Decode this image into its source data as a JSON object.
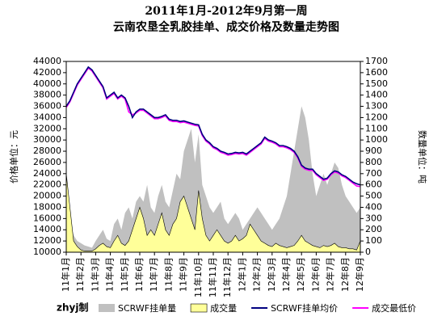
{
  "chart_data": {
    "type": "area-line",
    "title": "2011年1月-2012年9月第一周",
    "subtitle": "云南农垦全乳胶挂单、成交价格及数量走势图",
    "y_label": "价格单位：元",
    "y2_label": "数量单位：吨",
    "credit": "zhyj制",
    "categories": [
      "11年1月",
      null,
      null,
      null,
      "11年2月",
      null,
      null,
      null,
      "11年3月",
      null,
      null,
      null,
      "11年4月",
      null,
      null,
      null,
      "11年5月",
      null,
      null,
      null,
      "11年6月",
      null,
      null,
      null,
      "11年7月",
      null,
      null,
      null,
      "11年8月",
      null,
      null,
      null,
      "11年9月",
      null,
      null,
      null,
      "11年10月",
      null,
      null,
      null,
      "11年11月",
      null,
      null,
      null,
      "11年12月",
      null,
      null,
      null,
      "12年1月",
      null,
      null,
      null,
      "12年2月",
      null,
      null,
      null,
      "12年3月",
      null,
      null,
      null,
      "12年4月",
      null,
      null,
      null,
      "12年5月",
      null,
      null,
      null,
      "12年6月",
      null,
      null,
      null,
      "12年7月",
      null,
      null,
      null,
      "12年8月",
      null,
      null,
      null,
      "12年9月"
    ],
    "ylim": [
      10000,
      44000
    ],
    "yticks": [
      10000,
      12000,
      14000,
      16000,
      18000,
      20000,
      22000,
      24000,
      26000,
      28000,
      30000,
      32000,
      34000,
      36000,
      38000,
      40000,
      42000,
      44000
    ],
    "y2lim": [
      0,
      1700
    ],
    "y2ticks": [
      0,
      100,
      200,
      300,
      400,
      500,
      600,
      700,
      800,
      900,
      1000,
      1100,
      1200,
      1300,
      1400,
      1500,
      1600,
      1700
    ],
    "series": [
      {
        "name": "SCRWF挂单量",
        "color": "#c0c0c0",
        "kind": "area",
        "axis": "y2",
        "values": [
          700,
          300,
          150,
          100,
          80,
          60,
          50,
          40,
          100,
          150,
          200,
          120,
          100,
          250,
          300,
          200,
          350,
          400,
          300,
          450,
          500,
          450,
          600,
          400,
          350,
          500,
          600,
          450,
          400,
          550,
          700,
          650,
          900,
          1000,
          1100,
          800,
          1050,
          600,
          500,
          400,
          350,
          400,
          450,
          300,
          250,
          300,
          350,
          300,
          200,
          250,
          300,
          350,
          400,
          350,
          300,
          250,
          200,
          250,
          300,
          400,
          500,
          700,
          900,
          1100,
          1300,
          1200,
          1000,
          700,
          500,
          600,
          700,
          600,
          700,
          800,
          750,
          600,
          500,
          450,
          400,
          350,
          400
        ]
      },
      {
        "name": "成交量",
        "color": "#ffff99",
        "kind": "area",
        "axis": "y2",
        "values": [
          700,
          400,
          100,
          50,
          20,
          10,
          10,
          10,
          30,
          60,
          80,
          50,
          40,
          100,
          150,
          80,
          60,
          100,
          200,
          300,
          400,
          300,
          150,
          200,
          150,
          250,
          350,
          200,
          150,
          250,
          300,
          450,
          500,
          400,
          300,
          200,
          550,
          300,
          150,
          100,
          150,
          200,
          150,
          100,
          80,
          100,
          150,
          100,
          120,
          150,
          250,
          200,
          150,
          100,
          80,
          60,
          50,
          80,
          60,
          50,
          40,
          50,
          60,
          100,
          150,
          100,
          80,
          60,
          50,
          40,
          60,
          50,
          60,
          80,
          50,
          40,
          40,
          30,
          30,
          20,
          100
        ]
      },
      {
        "name": "SCRWF挂单均价",
        "color": "#000080",
        "kind": "line",
        "values": [
          36000,
          37000,
          38500,
          40000,
          41000,
          42000,
          43000,
          42500,
          41500,
          40500,
          39500,
          37500,
          38000,
          38500,
          37500,
          38000,
          37500,
          36000,
          34000,
          35000,
          35500,
          35500,
          35000,
          34500,
          34000,
          34000,
          34200,
          34500,
          33700,
          33500,
          33500,
          33300,
          33400,
          33200,
          33000,
          32800,
          32700,
          31000,
          30000,
          29500,
          28800,
          28500,
          28000,
          27800,
          27500,
          27600,
          27800,
          27700,
          27800,
          27500,
          28000,
          28500,
          29000,
          29500,
          30500,
          30000,
          29800,
          29500,
          29000,
          29000,
          28800,
          28500,
          28000,
          27000,
          25500,
          25000,
          24800,
          24800,
          24000,
          23500,
          23000,
          23200,
          24000,
          24500,
          24300,
          23800,
          23500,
          23000,
          22500,
          22200,
          22000
        ]
      },
      {
        "name": "成交最低价",
        "color": "#ff00ff",
        "kind": "line",
        "values": [
          35800,
          36800,
          38300,
          39800,
          40800,
          41800,
          42800,
          42300,
          41300,
          40300,
          39300,
          37300,
          37800,
          38300,
          37300,
          37800,
          37300,
          35000,
          34500,
          34800,
          35300,
          35300,
          34800,
          34300,
          33800,
          33800,
          34000,
          34300,
          33500,
          33300,
          33300,
          33100,
          33200,
          33000,
          32800,
          32600,
          32500,
          30800,
          29800,
          29300,
          28600,
          28300,
          27800,
          27600,
          27300,
          27400,
          27600,
          27500,
          27600,
          27300,
          27800,
          28300,
          28800,
          29300,
          30300,
          29800,
          29600,
          29300,
          28800,
          28800,
          28600,
          28300,
          27800,
          26800,
          25300,
          24800,
          24600,
          24600,
          23800,
          23300,
          22800,
          23000,
          23800,
          24300,
          24100,
          23600,
          23300,
          22800,
          22300,
          21800,
          21700
        ]
      }
    ]
  }
}
